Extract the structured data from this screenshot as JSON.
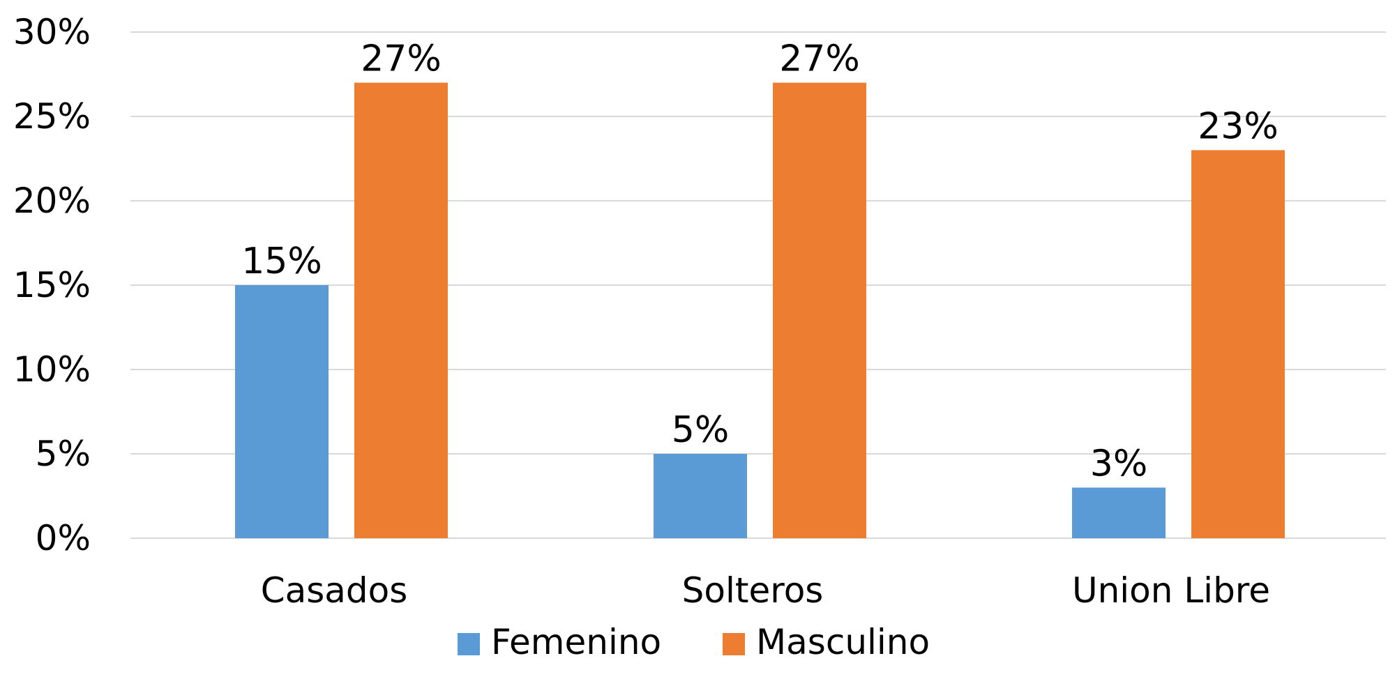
{
  "chart_data": {
    "type": "bar",
    "title": "",
    "xlabel": "",
    "ylabel": "",
    "categories": [
      "Casados",
      "Solteros",
      "Union Libre"
    ],
    "series": [
      {
        "name": "Femenino",
        "values": [
          15,
          5,
          3
        ],
        "labels": [
          "15%",
          "5%",
          "3%"
        ],
        "color": "#5b9bd5"
      },
      {
        "name": "Masculino",
        "values": [
          27,
          27,
          23
        ],
        "labels": [
          "27%",
          "27%",
          "23%"
        ],
        "color": "#ed7d31"
      }
    ],
    "ylim": [
      0,
      30
    ],
    "yticks": [
      0,
      5,
      10,
      15,
      20,
      25,
      30
    ],
    "ytick_labels": [
      "0%",
      "5%",
      "10%",
      "15%",
      "20%",
      "25%",
      "30%"
    ],
    "grid": true,
    "gridline_color": "#d9d9d9",
    "legend_position": "bottom"
  }
}
